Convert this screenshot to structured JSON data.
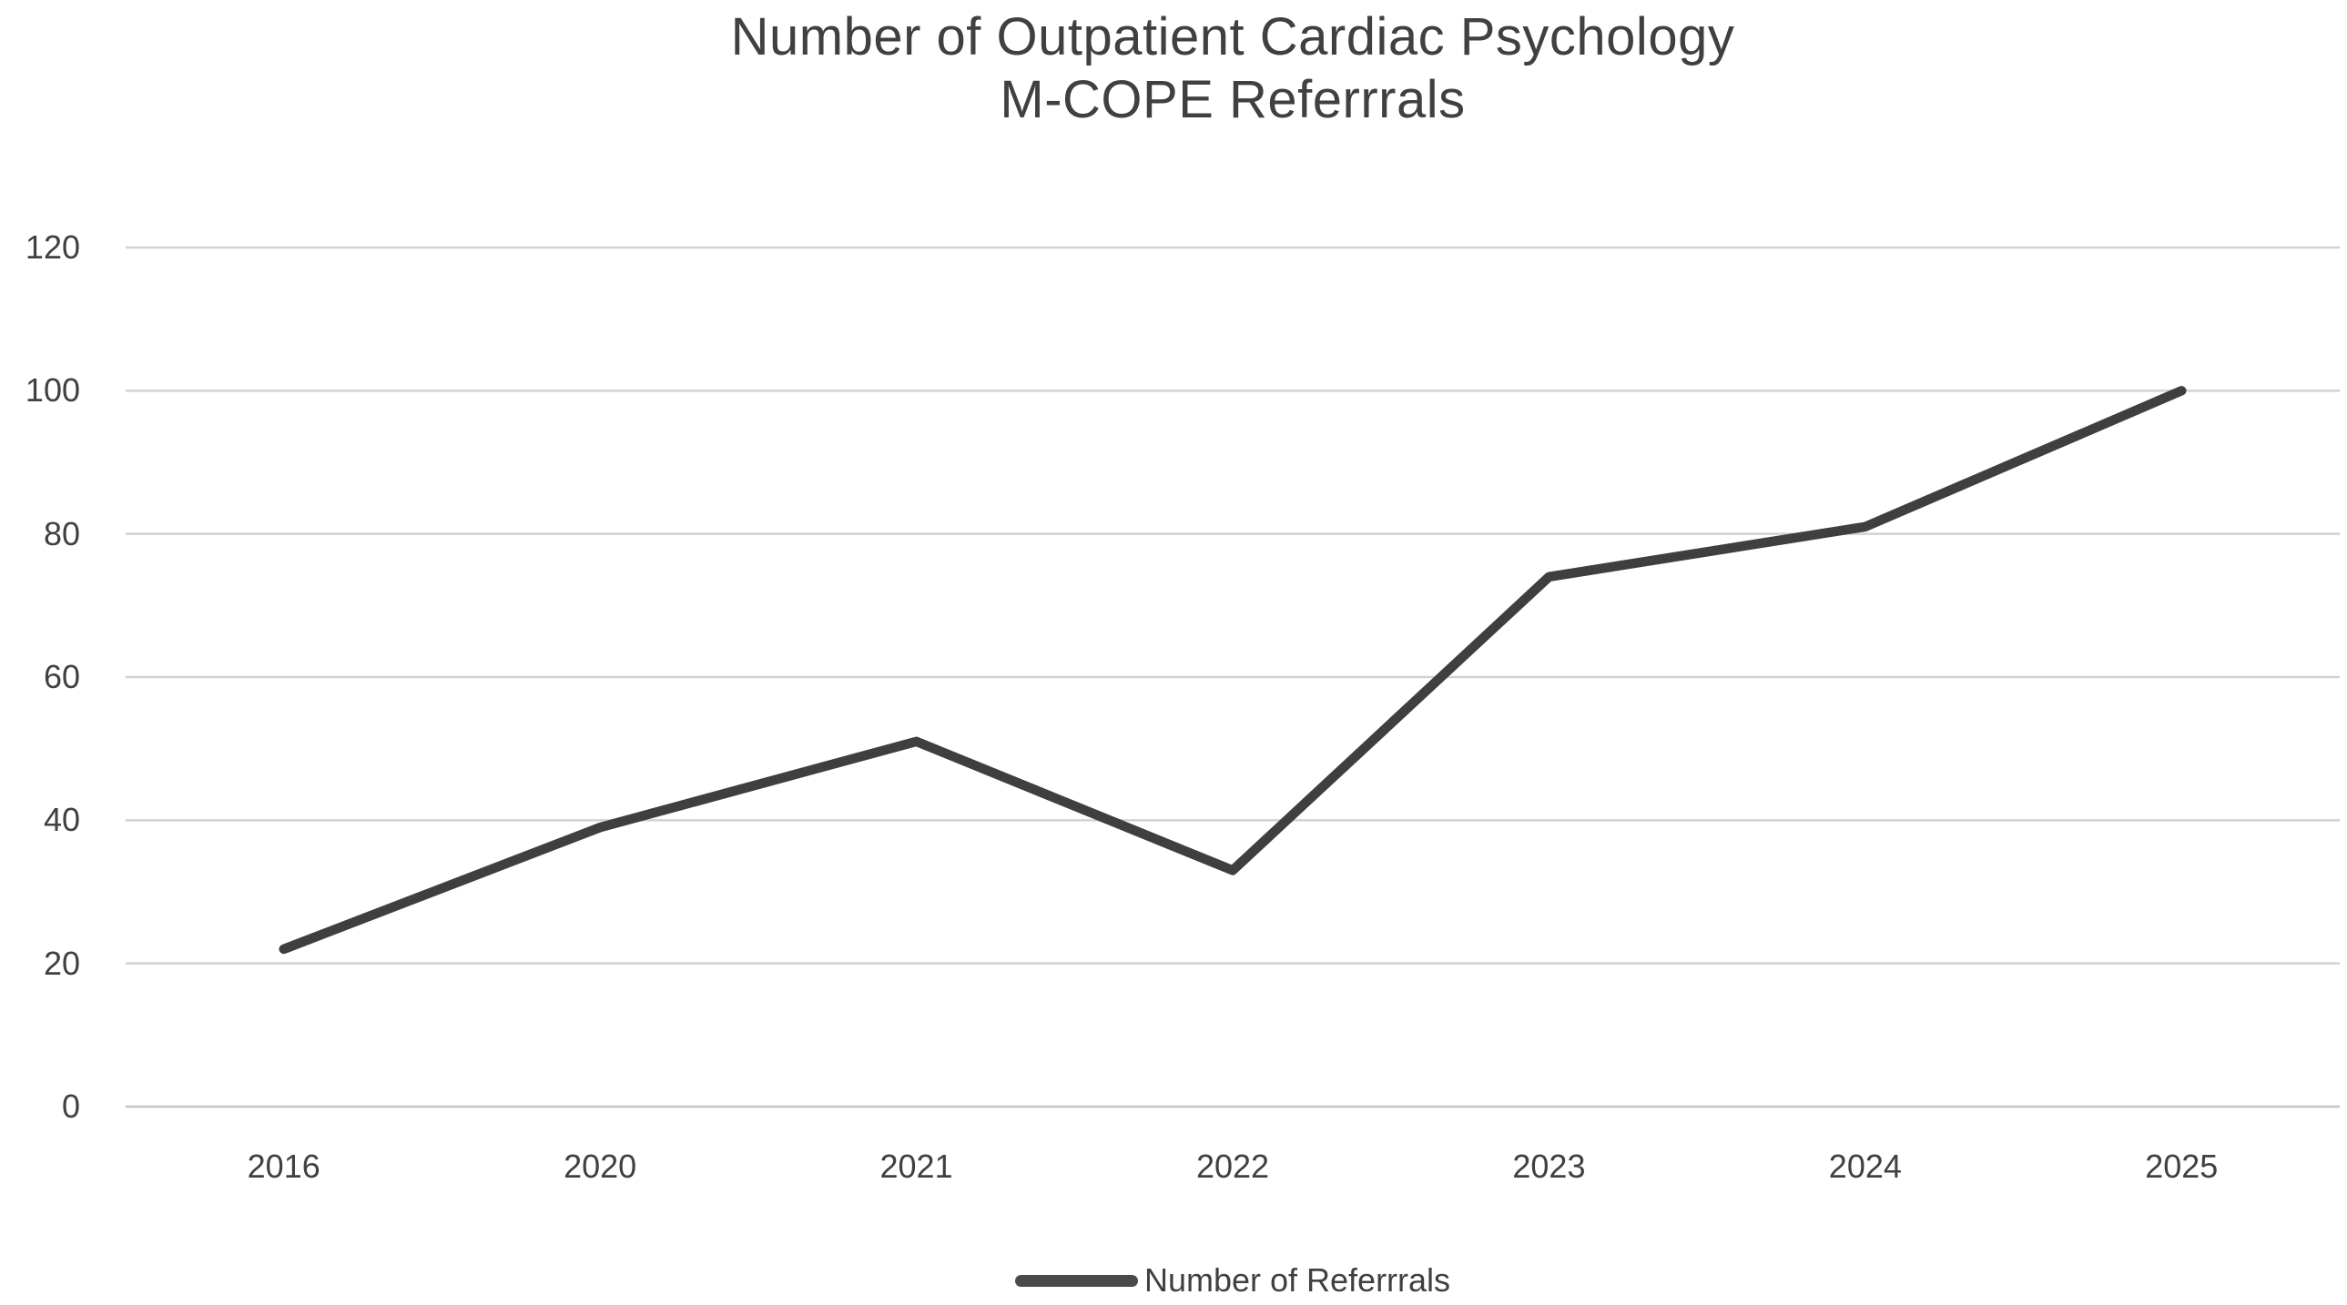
{
  "title": {
    "line1": "Number of Outpatient Cardiac Psychology",
    "line2": "M-COPE Referrrals"
  },
  "chart_data": {
    "type": "line",
    "title": "Number of Outpatient Cardiac Psychology M-COPE Referrrals",
    "categories": [
      "2016",
      "2020",
      "2021",
      "2022",
      "2023",
      "2024",
      "2025"
    ],
    "series": [
      {
        "name": "Number of Referrrals",
        "values": [
          22,
          39,
          51,
          33,
          74,
          81,
          100
        ]
      }
    ],
    "xlabel": "",
    "ylabel": "",
    "ylim": [
      0,
      120
    ],
    "yticks": [
      0,
      20,
      40,
      60,
      80,
      100,
      120
    ],
    "grid": "horizontal",
    "legend_position": "bottom",
    "colors": {
      "series_line": "#3F3F3F",
      "gridline": "#D2D2D2",
      "axis_baseline": "#C6C6C6",
      "text": "#404040",
      "background": "#FFFFFF"
    }
  },
  "legend": {
    "label": "Number of Referrrals"
  }
}
